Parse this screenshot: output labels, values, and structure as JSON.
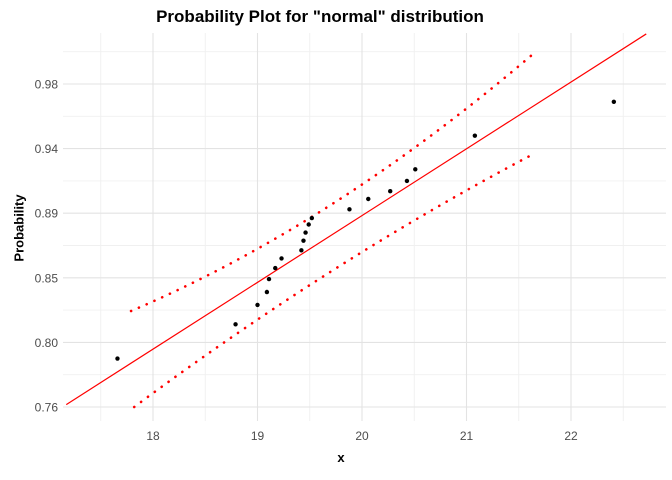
{
  "chart_data": {
    "type": "scatter",
    "title": "Probability Plot for \"normal\" distribution",
    "xlabel": "x",
    "ylabel": "Probability",
    "x_ticks": [
      18,
      19,
      20,
      21,
      22
    ],
    "x_tick_labels": [
      "18",
      "19",
      "20",
      "21",
      "22"
    ],
    "x_minor_ticks": [
      17.5,
      18.5,
      19.5,
      20.5,
      21.5,
      22.5
    ],
    "y_ticks": [
      0.98,
      0.94,
      0.89,
      0.85,
      0.8,
      0.76
    ],
    "y_tick_labels": [
      "0.98",
      "0.94",
      "0.89",
      "0.85",
      "0.80",
      "0.76"
    ],
    "xlim": [
      17.14,
      22.95
    ],
    "ylim_probability": [
      0.755,
      1.0
    ],
    "grid": true,
    "legend_position": "none",
    "points": [
      {
        "x": 17.66,
        "p": 0.79
      },
      {
        "x": 18.79,
        "p": 0.814
      },
      {
        "x": 19.0,
        "p": 0.829
      },
      {
        "x": 19.09,
        "p": 0.839
      },
      {
        "x": 19.11,
        "p": 0.849
      },
      {
        "x": 19.17,
        "p": 0.856
      },
      {
        "x": 19.23,
        "p": 0.862
      },
      {
        "x": 19.42,
        "p": 0.867
      },
      {
        "x": 19.44,
        "p": 0.873
      },
      {
        "x": 19.46,
        "p": 0.878
      },
      {
        "x": 19.49,
        "p": 0.883
      },
      {
        "x": 19.52,
        "p": 0.887
      },
      {
        "x": 19.88,
        "p": 0.893
      },
      {
        "x": 20.06,
        "p": 0.901
      },
      {
        "x": 20.27,
        "p": 0.907
      },
      {
        "x": 20.43,
        "p": 0.915
      },
      {
        "x": 20.51,
        "p": 0.924
      },
      {
        "x": 21.08,
        "p": 0.948
      },
      {
        "x": 22.41,
        "p": 0.969
      }
    ],
    "fit_line": {
      "x1": 17.17,
      "p1": 0.7615,
      "x2": 22.72,
      "p2": 1.011
    },
    "confidence_bands": {
      "style": "dotted",
      "upper": {
        "start": {
          "x": 17.79,
          "p": 0.8243
        },
        "control": {
          "x": 19.73,
          "p": 0.8827
        },
        "end": {
          "x": 21.67,
          "p": 1.0004
        }
      },
      "lower": {
        "start": {
          "x": 17.82,
          "p": 0.76
        },
        "control": {
          "x": 19.72,
          "p": 0.8613
        },
        "end": {
          "x": 21.64,
          "p": 0.9358
        }
      }
    },
    "colors": {
      "line": "#FF0000",
      "band": "#FF0000",
      "point": "#000000",
      "grid_major": "#E3E3E3",
      "grid_minor": "#F0F0F0",
      "axis_text": "#4D4D4D",
      "title_text": "#000000"
    }
  }
}
